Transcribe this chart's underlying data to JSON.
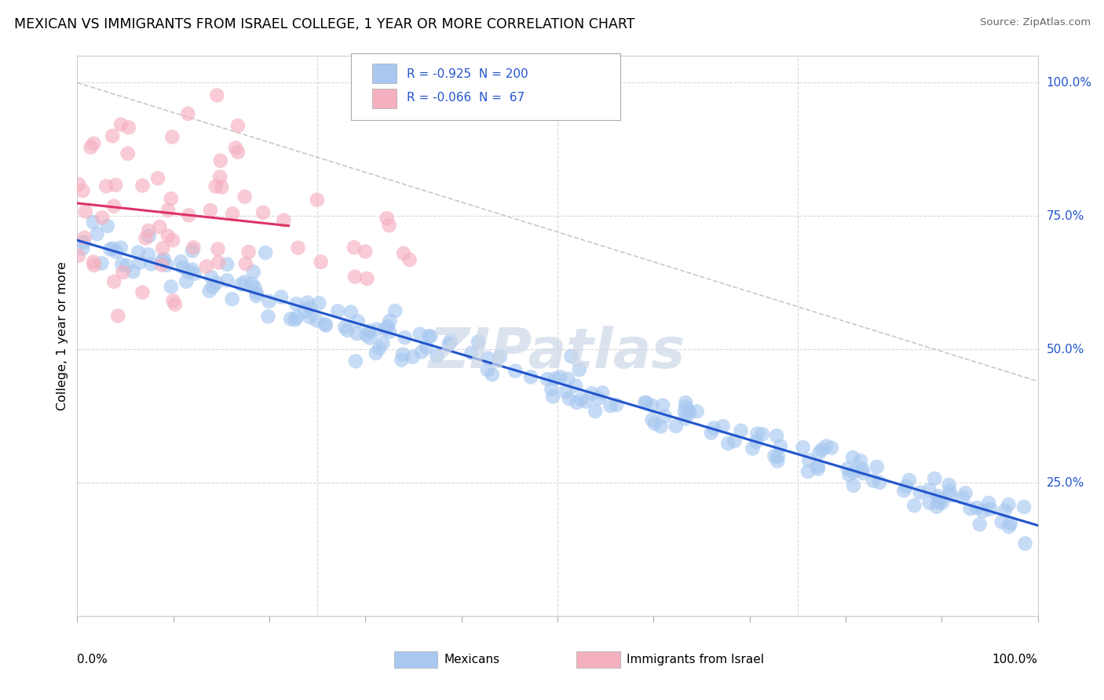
{
  "title": "MEXICAN VS IMMIGRANTS FROM ISRAEL COLLEGE, 1 YEAR OR MORE CORRELATION CHART",
  "source": "Source: ZipAtlas.com",
  "ylabel": "College, 1 year or more",
  "yaxis_labels": [
    "25.0%",
    "50.0%",
    "75.0%",
    "100.0%"
  ],
  "yaxis_vals": [
    0.25,
    0.5,
    0.75,
    1.0
  ],
  "legend_labels": [
    "Mexicans",
    "Immigrants from Israel"
  ],
  "blue_R": -0.925,
  "blue_N": 200,
  "pink_R": -0.066,
  "pink_N": 67,
  "blue_color": "#a8c8f0",
  "pink_color": "#f5b0c0",
  "blue_line_color": "#2255cc",
  "pink_line_color": "#dd3366",
  "ref_line_color": "#c8c8c8",
  "grid_color": "#d8d8d8",
  "watermark_color": "#ccd8e8",
  "figsize": [
    14.06,
    8.92
  ],
  "dpi": 100,
  "blue_seed": 42,
  "pink_seed": 99,
  "xlim": [
    0,
    1
  ],
  "ylim": [
    0,
    1.05
  ]
}
